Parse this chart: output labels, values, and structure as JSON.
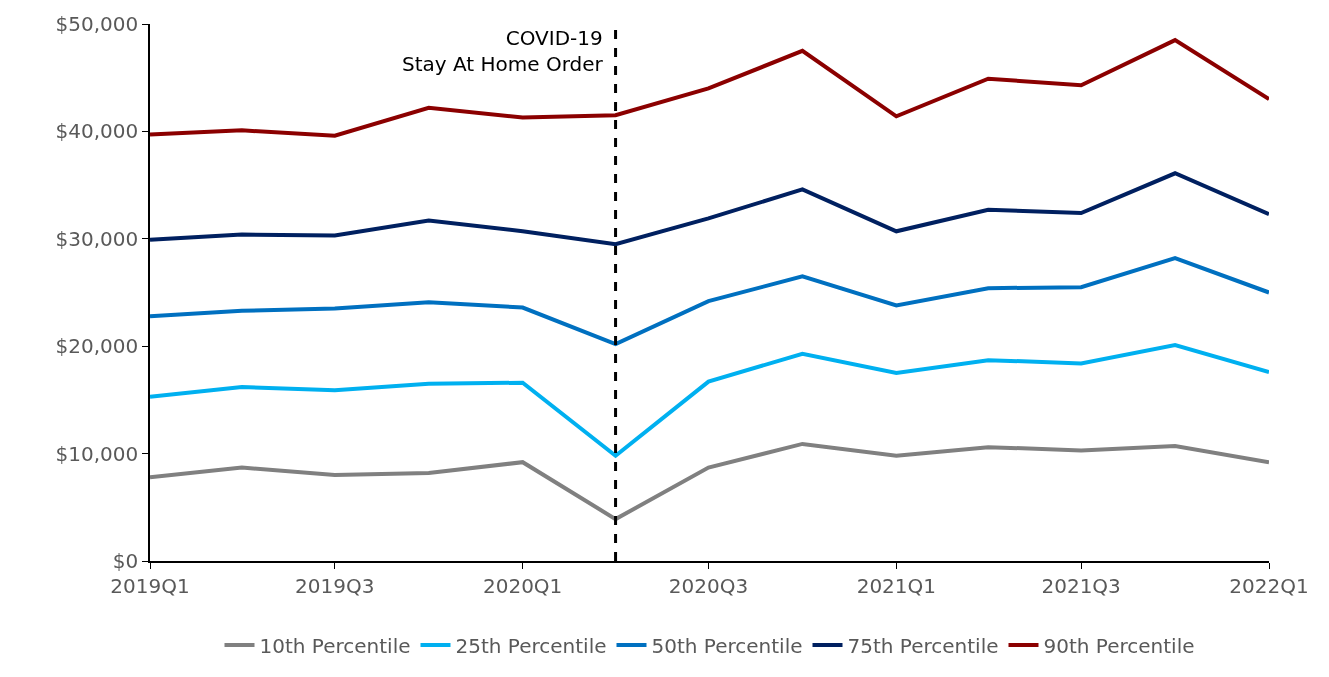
{
  "chart_data": {
    "type": "line",
    "x": [
      "2019-01",
      "2019-04",
      "2019-07",
      "2019-10",
      "2020-01",
      "2020-04",
      "2020-07",
      "2020-10",
      "2021-01",
      "2021-04",
      "2021-07",
      "2021-10",
      "2022-01"
    ],
    "xlim": [
      "2019-01",
      "2022-01"
    ],
    "xticks": [
      {
        "value": "2019-01",
        "label": "2019Q1"
      },
      {
        "value": "2019-07",
        "label": "2019Q3"
      },
      {
        "value": "2020-01",
        "label": "2020Q1"
      },
      {
        "value": "2020-07",
        "label": "2020Q3"
      },
      {
        "value": "2021-01",
        "label": "2021Q1"
      },
      {
        "value": "2021-07",
        "label": "2021Q3"
      },
      {
        "value": "2022-01",
        "label": "2022Q1"
      }
    ],
    "ylim": [
      0,
      50000
    ],
    "yticks": [
      {
        "value": 0,
        "label": "$0"
      },
      {
        "value": 10000,
        "label": "$10,000"
      },
      {
        "value": 20000,
        "label": "$20,000"
      },
      {
        "value": 30000,
        "label": "$30,000"
      },
      {
        "value": 40000,
        "label": "$40,000"
      },
      {
        "value": 50000,
        "label": "$50,000"
      }
    ],
    "series": [
      {
        "name": "10th Percentile",
        "color": "#808080",
        "values": [
          7800,
          8700,
          8000,
          8200,
          9200,
          3900,
          8700,
          10900,
          9800,
          10600,
          10300,
          10700,
          9200
        ]
      },
      {
        "name": "25th Percentile",
        "color": "#00b0f0",
        "values": [
          15300,
          16200,
          15900,
          16500,
          16600,
          9800,
          16700,
          19300,
          17500,
          18700,
          18400,
          20100,
          17600
        ]
      },
      {
        "name": "50th Percentile",
        "color": "#0070c0",
        "values": [
          22800,
          23300,
          23500,
          24100,
          23600,
          20200,
          24200,
          26500,
          23800,
          25400,
          25500,
          28200,
          25000
        ]
      },
      {
        "name": "75th Percentile",
        "color": "#002060",
        "values": [
          29900,
          30400,
          30300,
          31700,
          30700,
          29500,
          31900,
          34600,
          30700,
          32700,
          32400,
          36100,
          32300
        ]
      },
      {
        "name": "90th Percentile",
        "color": "#8b0000",
        "values": [
          39700,
          40100,
          39600,
          42200,
          41300,
          41500,
          44000,
          47500,
          41400,
          44900,
          44300,
          48500,
          43000
        ]
      }
    ],
    "ref_lines": [
      {
        "axis": "x",
        "value": "2020-04",
        "label": "COVID-19\nStay At Home Order",
        "color": "#000000",
        "line_style": "dashed"
      }
    ],
    "legend": "bottom",
    "marker": "none",
    "line_style": "solid"
  }
}
